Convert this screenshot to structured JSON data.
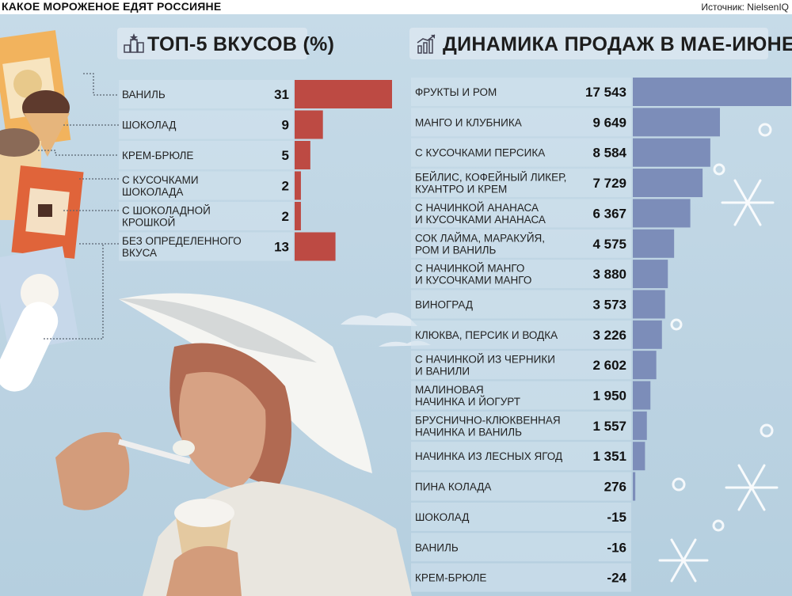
{
  "title": "КАКОЕ МОРОЖЕНОЕ ЕДЯТ РОССИЯНЕ",
  "source": "Источник: NielsenIQ",
  "colors": {
    "left_bars": "#bd4a43",
    "right_bars": "#7c8db9",
    "background": "#c1d8e6"
  },
  "icons": {
    "left_header": "podium-icon",
    "right_header": "growth-chart-icon"
  },
  "chart_data": [
    {
      "type": "bar",
      "orientation": "horizontal",
      "title": "ТОП-5 ВКУСОВ (%)",
      "categories": [
        [
          "ВАНИЛЬ"
        ],
        [
          "ШОКОЛАД"
        ],
        [
          "КРЕМ-БРЮЛЕ"
        ],
        [
          "С КУСОЧКАМИ",
          "ШОКОЛАДА"
        ],
        [
          "С ШОКОЛАДНОЙ",
          "КРОШКОЙ"
        ],
        [
          "БЕЗ ОПРЕДЕЛЕННОГО",
          "ВКУСА"
        ]
      ],
      "values": [
        31,
        9,
        5,
        2,
        2,
        13
      ],
      "labels": [
        "31",
        "9",
        "5",
        "2",
        "2",
        "13"
      ]
    },
    {
      "type": "bar",
      "orientation": "horizontal",
      "title": "ДИНАМИКА ПРОДАЖ В МАЕ-ИЮНЕ (%)",
      "categories": [
        [
          "ФРУКТЫ И РОМ"
        ],
        [
          "МАНГО И КЛУБНИКА"
        ],
        [
          "С КУСОЧКАМИ ПЕРСИКА"
        ],
        [
          "БЕЙЛИС, КОФЕЙНЫЙ ЛИКЕР,",
          "КУАНТРО И КРЕМ"
        ],
        [
          "С НАЧИНКОЙ АНАНАСА",
          "И КУСОЧКАМИ АНАНАСА"
        ],
        [
          "СОК ЛАЙМА, МАРАКУЙЯ,",
          "РОМ И ВАНИЛЬ"
        ],
        [
          "С НАЧИНКОЙ МАНГО",
          "И КУСОЧКАМИ МАНГО"
        ],
        [
          "ВИНОГРАД"
        ],
        [
          "КЛЮКВА, ПЕРСИК И ВОДКА"
        ],
        [
          "С НАЧИНКОЙ ИЗ ЧЕРНИКИ",
          "И ВАНИЛИ"
        ],
        [
          "МАЛИНОВАЯ",
          "НАЧИНКА И ЙОГУРТ"
        ],
        [
          "БРУСНИЧНО-КЛЮКВЕННАЯ",
          "НАЧИНКА И ВАНИЛЬ"
        ],
        [
          "НАЧИНКА ИЗ ЛЕСНЫХ ЯГОД"
        ],
        [
          "ПИНА КОЛАДА"
        ],
        [
          "ШОКОЛАД"
        ],
        [
          "ВАНИЛЬ"
        ],
        [
          "КРЕМ-БРЮЛЕ"
        ]
      ],
      "values": [
        17543,
        9649,
        8584,
        7729,
        6367,
        4575,
        3880,
        3573,
        3226,
        2602,
        1950,
        1557,
        1351,
        276,
        -15,
        -16,
        -24
      ],
      "labels": [
        "17 543",
        "9 649",
        "8 584",
        "7 729",
        "6 367",
        "4 575",
        "3 880",
        "3 573",
        "3 226",
        "2 602",
        "1 950",
        "1 557",
        "1 351",
        "276",
        "-15",
        "-16",
        "-24"
      ]
    }
  ]
}
